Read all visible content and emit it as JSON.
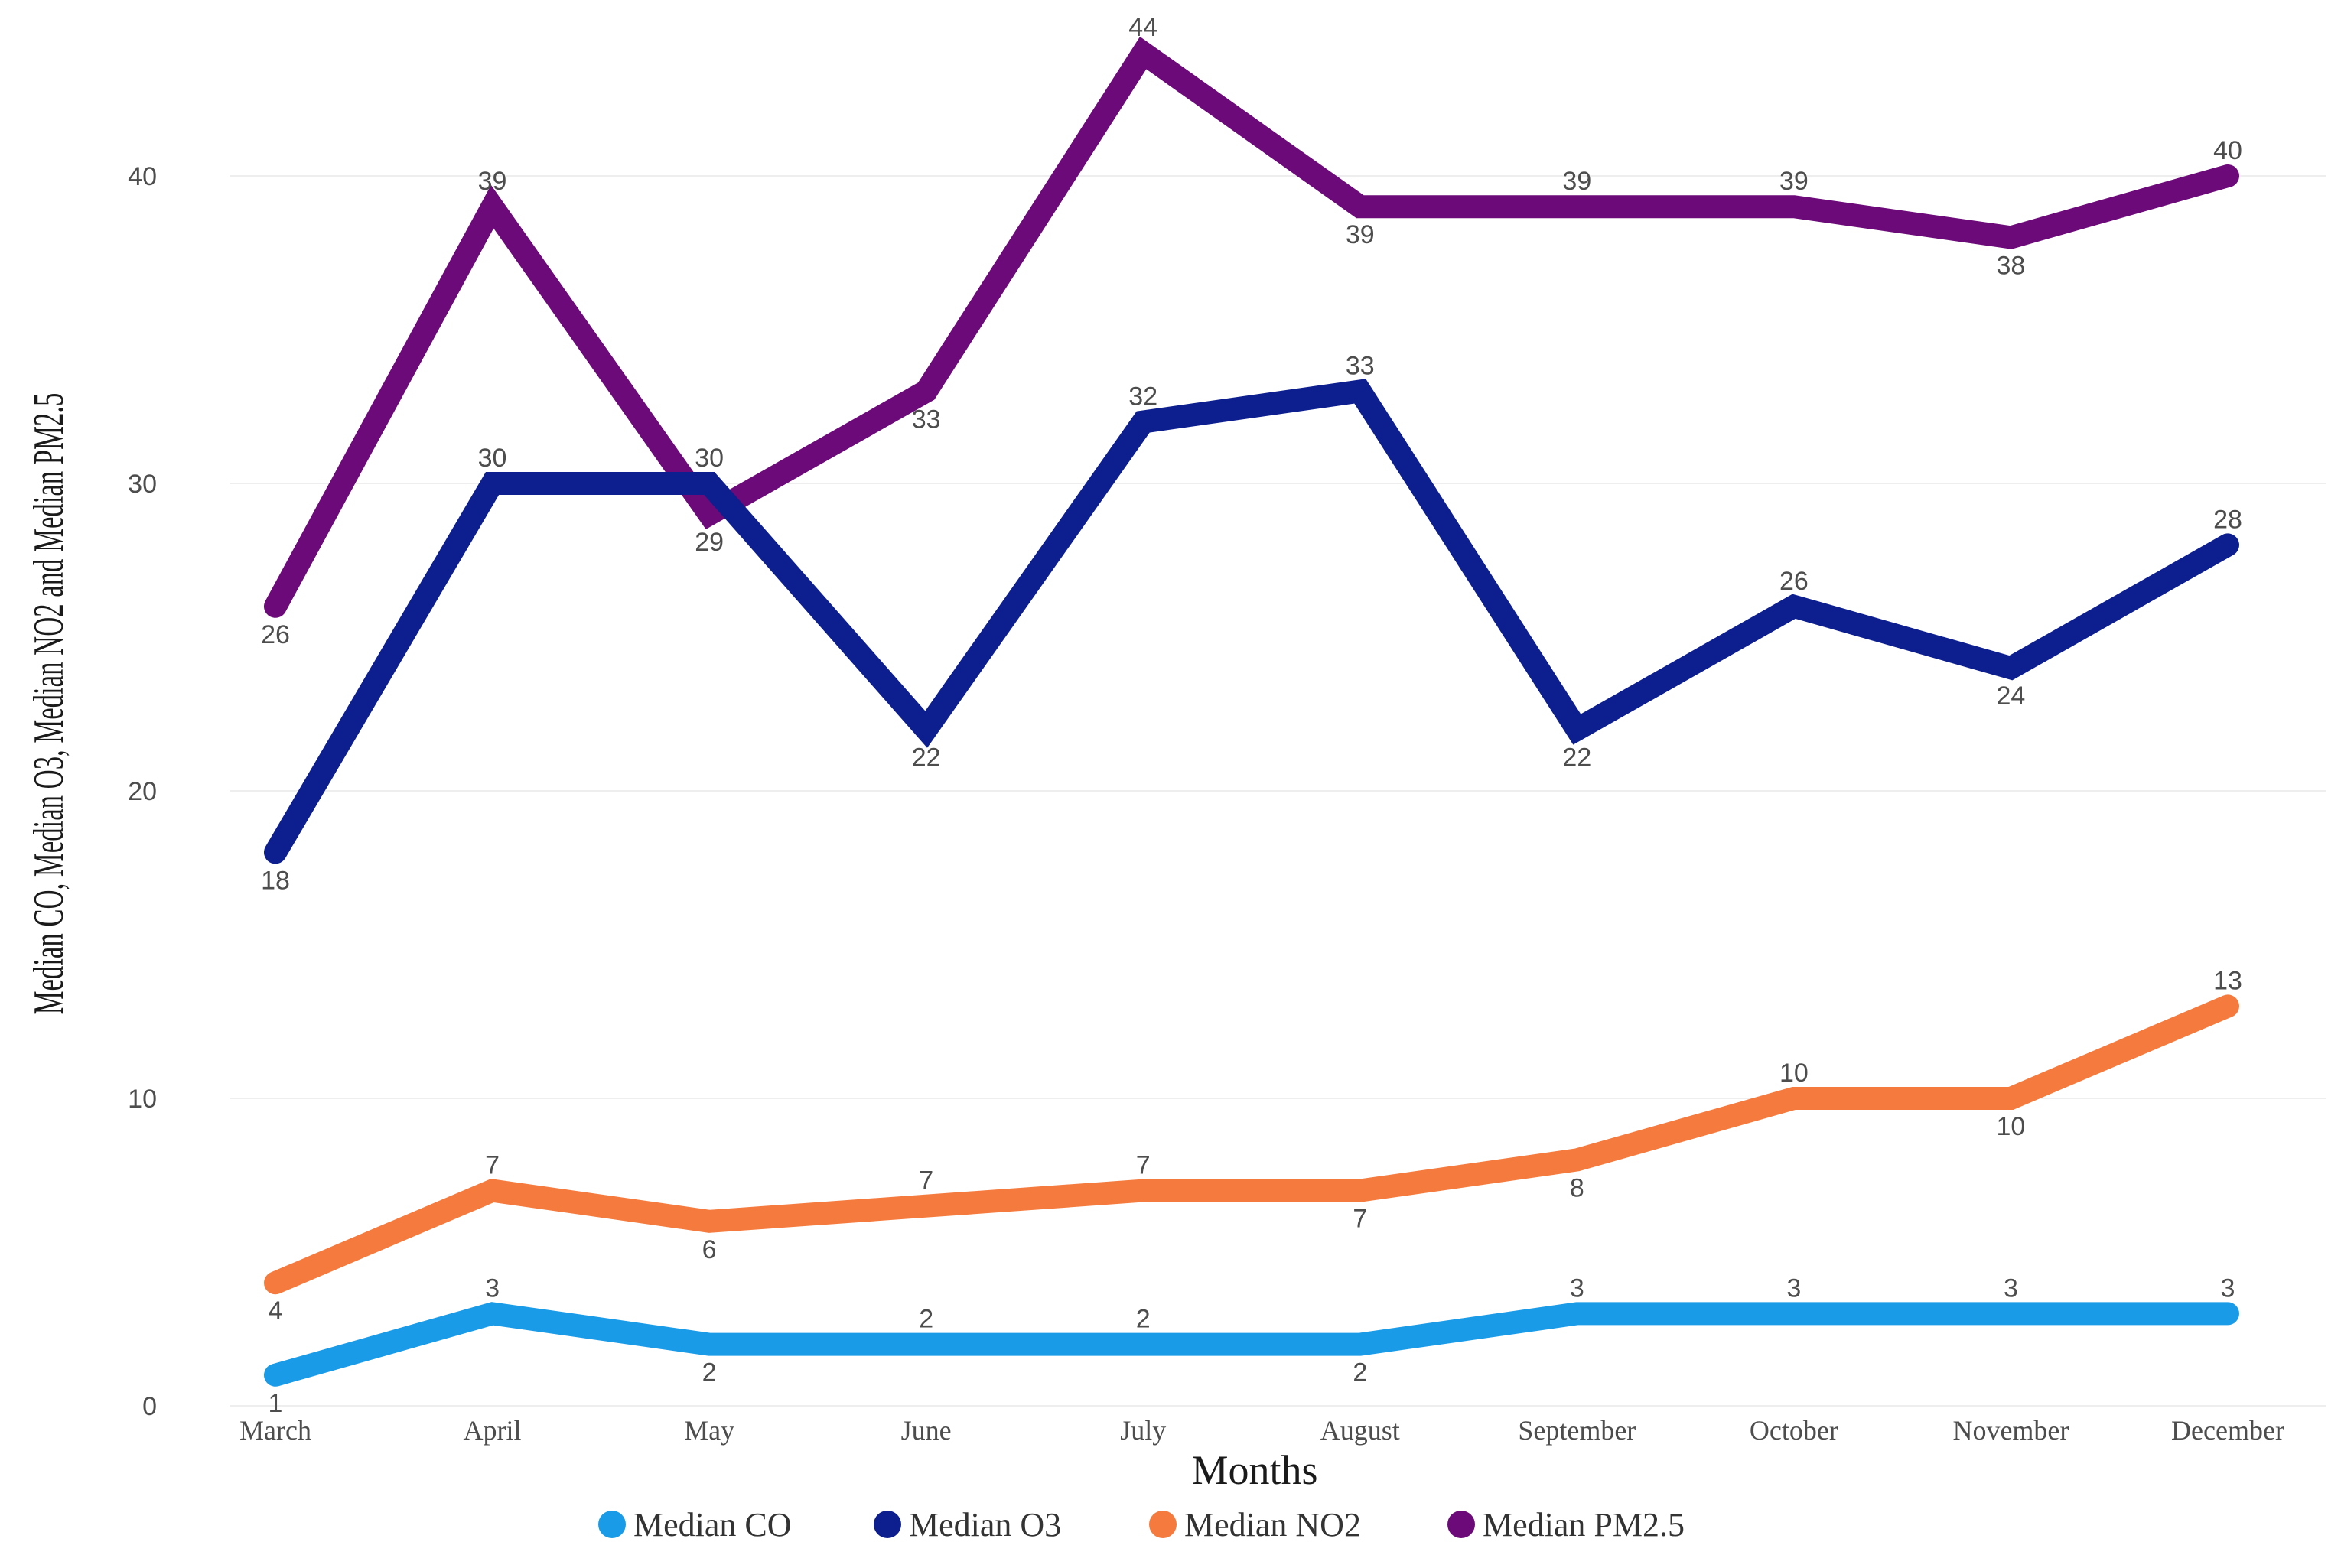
{
  "chart_data": {
    "type": "line",
    "title": "",
    "xlabel": "Months",
    "ylabel": "Median CO, Median O3, Median NO2 and Median PM2.5",
    "categories": [
      "March",
      "April",
      "May",
      "June",
      "July",
      "August",
      "September",
      "October",
      "November",
      "December"
    ],
    "ylim": [
      0,
      44
    ],
    "yticks": [
      0,
      10,
      20,
      30,
      40
    ],
    "grid": true,
    "legend_position": "bottom",
    "series": [
      {
        "name": "Median CO",
        "color": "#1a9be8",
        "values": [
          1,
          3,
          2,
          2,
          2,
          2,
          3,
          3,
          3,
          3
        ],
        "labels": [
          "1",
          "3",
          "2",
          "2",
          "2",
          "2",
          "3",
          "3",
          "3",
          "3"
        ]
      },
      {
        "name": "Median O3",
        "color": "#0d1f8f",
        "values": [
          18,
          30,
          30,
          22,
          32,
          33,
          22,
          26,
          24,
          28
        ],
        "labels": [
          "18",
          "30",
          "30",
          "22",
          "32",
          "33",
          "22",
          "26",
          "24",
          "28"
        ]
      },
      {
        "name": "Median NO2",
        "color": "#f57a3d",
        "values": [
          4,
          7,
          6,
          6.5,
          7,
          7,
          8,
          10,
          10,
          13
        ],
        "labels": [
          "4",
          "7",
          "6",
          "7",
          "7",
          "7",
          "8",
          "10",
          "10",
          "13"
        ]
      },
      {
        "name": "Median PM2.5",
        "color": "#6b0a78",
        "values": [
          26,
          39,
          29,
          33,
          44,
          39,
          39,
          39,
          38,
          40
        ],
        "labels": [
          "26",
          "39",
          "29",
          "33",
          "44",
          "39",
          "39",
          "39",
          "38",
          "40"
        ]
      }
    ]
  }
}
